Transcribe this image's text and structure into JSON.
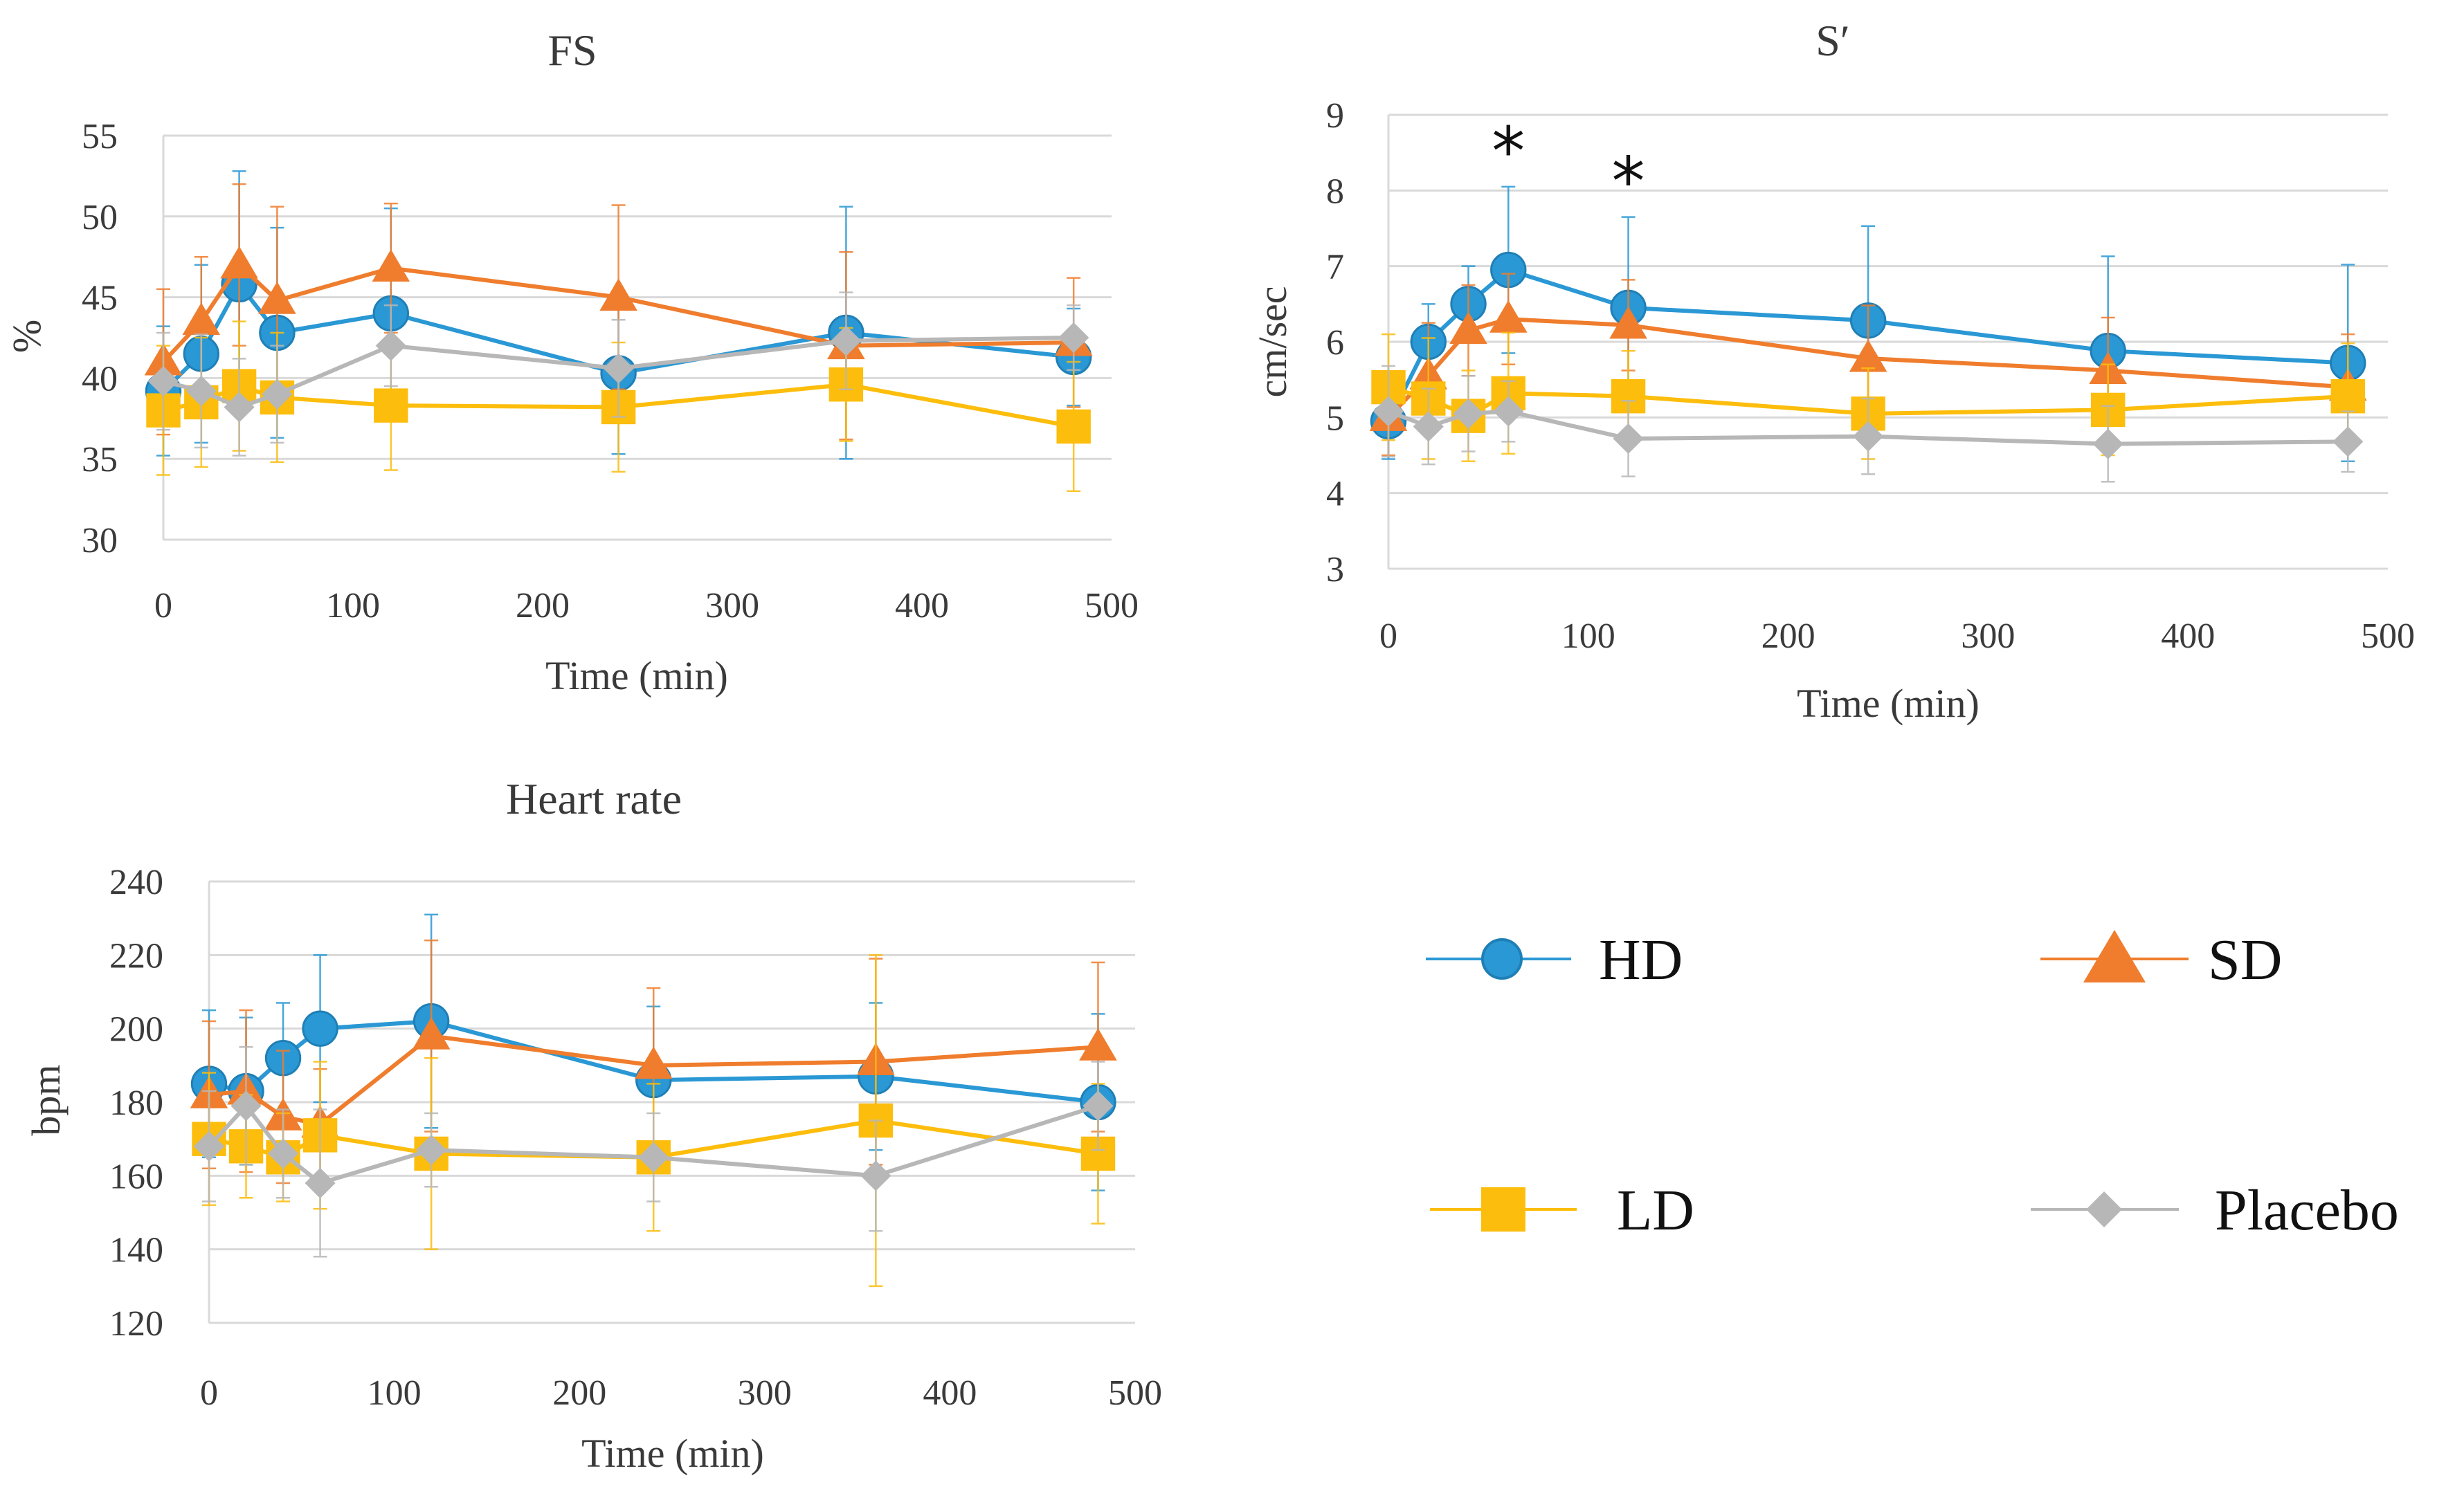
{
  "series": [
    {
      "key": "HD",
      "name": "HD",
      "color": "#2a98d4",
      "marker": "circle"
    },
    {
      "key": "SD",
      "name": "SD",
      "color": "#ef7d2d",
      "marker": "triangle"
    },
    {
      "key": "LD",
      "name": "LD",
      "color": "#fcbd0c",
      "marker": "square"
    },
    {
      "key": "PL",
      "name": "Placebo",
      "color": "#b7b7b7",
      "marker": "diamond"
    }
  ],
  "chart_data": [
    {
      "id": "fs",
      "type": "line",
      "title": "FS",
      "xlabel": "Time (min)",
      "ylabel": "%",
      "xlim": [
        0,
        500
      ],
      "ylim": [
        30,
        55
      ],
      "xticks": [
        0,
        100,
        200,
        300,
        400,
        500
      ],
      "yticks": [
        30,
        35,
        40,
        45,
        50,
        55
      ],
      "x": [
        0,
        20,
        40,
        60,
        120,
        240,
        360,
        480
      ],
      "series": {
        "HD": {
          "values": [
            39.2,
            41.5,
            45.8,
            42.8,
            44.0,
            40.3,
            42.8,
            41.3
          ],
          "err": [
            4.0,
            5.5,
            7.0,
            6.5,
            6.5,
            5.0,
            7.8,
            3.0
          ]
        },
        "SD": {
          "values": [
            41.0,
            43.5,
            47.0,
            44.8,
            46.8,
            45.0,
            42.0,
            42.2
          ],
          "err": [
            4.5,
            4.0,
            5.0,
            5.8,
            4.0,
            5.7,
            5.8,
            4.0
          ]
        },
        "LD": {
          "values": [
            38.0,
            38.5,
            39.5,
            38.8,
            38.3,
            38.2,
            39.6,
            37.0
          ],
          "err": [
            4.0,
            4.0,
            4.0,
            4.0,
            4.0,
            4.0,
            3.5,
            4.0
          ]
        },
        "PL": {
          "values": [
            39.8,
            39.2,
            38.2,
            39.0,
            42.0,
            40.6,
            42.3,
            42.5
          ],
          "err": [
            3.0,
            3.5,
            3.0,
            3.0,
            2.5,
            3.0,
            3.0,
            2.0
          ]
        }
      },
      "annotations": []
    },
    {
      "id": "s",
      "type": "line",
      "title": "S′",
      "xlabel": "Time (min)",
      "ylabel": "cm/sec",
      "xlim": [
        0,
        500
      ],
      "ylim": [
        3,
        9
      ],
      "xticks": [
        0,
        100,
        200,
        300,
        400,
        500
      ],
      "yticks": [
        3,
        4,
        5,
        6,
        7,
        8,
        9
      ],
      "x": [
        0,
        20,
        40,
        60,
        120,
        240,
        360,
        480
      ],
      "series": {
        "HD": {
          "values": [
            4.95,
            6.0,
            6.5,
            6.95,
            6.45,
            6.28,
            5.88,
            5.72
          ],
          "err": [
            0.5,
            0.5,
            0.5,
            1.1,
            1.2,
            1.25,
            1.25,
            1.3
          ]
        },
        "SD": {
          "values": [
            5.0,
            5.55,
            6.15,
            6.3,
            6.22,
            5.78,
            5.62,
            5.4
          ],
          "err": [
            0.5,
            0.7,
            0.6,
            0.6,
            0.6,
            0.7,
            0.7,
            0.7
          ]
        },
        "LD": {
          "values": [
            5.4,
            5.25,
            5.02,
            5.32,
            5.28,
            5.05,
            5.1,
            5.28
          ],
          "err": [
            0.7,
            0.8,
            0.6,
            0.8,
            0.6,
            0.6,
            0.6,
            0.7
          ]
        },
        "PL": {
          "values": [
            5.08,
            4.88,
            5.05,
            5.08,
            4.72,
            4.75,
            4.65,
            4.68
          ],
          "err": [
            0.6,
            0.5,
            0.5,
            0.4,
            0.5,
            0.5,
            0.5,
            0.4
          ]
        }
      },
      "annotations": [
        {
          "x": 60,
          "label": "*"
        },
        {
          "x": 120,
          "label": "*"
        }
      ]
    },
    {
      "id": "hr",
      "type": "line",
      "title": "Heart rate",
      "xlabel": "Time (min)",
      "ylabel": "bpm",
      "xlim": [
        0,
        500
      ],
      "ylim": [
        120,
        240
      ],
      "xticks": [
        0,
        100,
        200,
        300,
        400,
        500
      ],
      "yticks": [
        120,
        140,
        160,
        180,
        200,
        220,
        240
      ],
      "x": [
        0,
        20,
        40,
        60,
        120,
        240,
        360,
        480
      ],
      "series": {
        "HD": {
          "values": [
            185,
            183,
            192,
            200,
            202,
            186,
            187,
            180
          ],
          "err": [
            20,
            20,
            15,
            20,
            29,
            20,
            20,
            24
          ]
        },
        "SD": {
          "values": [
            182,
            183,
            176,
            174,
            198,
            190,
            191,
            195
          ],
          "err": [
            20,
            22,
            18,
            15,
            26,
            21,
            28,
            23
          ]
        },
        "LD": {
          "values": [
            170,
            168,
            165,
            171,
            166,
            165,
            175,
            166
          ],
          "err": [
            18,
            14,
            12,
            20,
            26,
            20,
            45,
            19
          ]
        },
        "PL": {
          "values": [
            168,
            179,
            166,
            158,
            167,
            165,
            160,
            179
          ],
          "err": [
            15,
            16,
            12,
            20,
            10,
            12,
            15,
            12
          ]
        }
      },
      "annotations": []
    }
  ]
}
